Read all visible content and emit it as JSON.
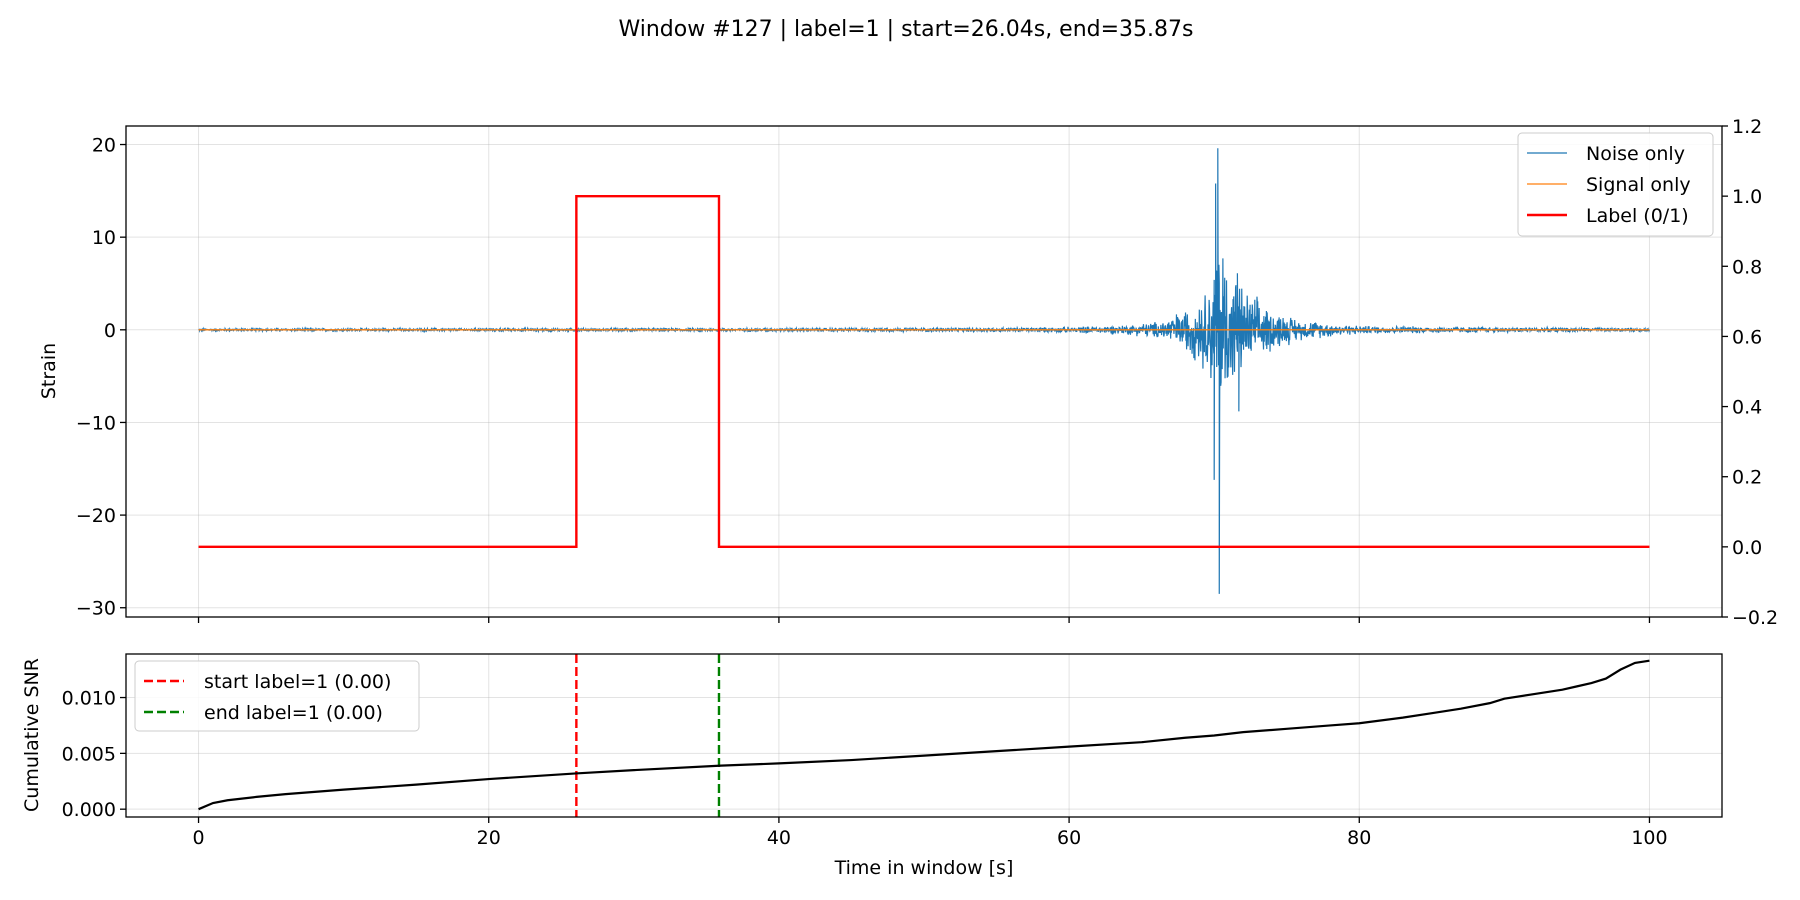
{
  "chart_data": {
    "title": "Window #127 | label=1 | start=26.04s, end=35.87s",
    "panels": [
      {
        "type": "line",
        "ylabel": "Strain",
        "xlim": [
          -5,
          105
        ],
        "ylim": [
          -31,
          22
        ],
        "yticks": [
          20,
          10,
          0,
          -10,
          -20,
          -30
        ],
        "y_tick_labels": [
          "20",
          "10",
          "0",
          "−10",
          "−20",
          "−30"
        ],
        "xticks": [
          0,
          20,
          40,
          60,
          80,
          100
        ],
        "grid": true,
        "legend": {
          "placement": "top-right",
          "entries": [
            {
              "label": "Noise only",
              "color": "#1f77b4",
              "style": "solid-thin"
            },
            {
              "label": "Signal only",
              "color": "#ff7f0e",
              "style": "solid-thin"
            },
            {
              "label": "Label (0/1)",
              "color": "#ff0000",
              "style": "solid-thick"
            }
          ]
        },
        "secondary_y": {
          "ylim": [
            -0.2,
            1.2
          ],
          "yticks": [
            1.2,
            1.0,
            0.8,
            0.6,
            0.4,
            0.2,
            0.0,
            -0.2
          ],
          "y_tick_labels": [
            "1.2",
            "1.0",
            "0.8",
            "0.6",
            "0.4",
            "0.2",
            "0.0",
            "−0.2"
          ]
        },
        "series": [
          {
            "name": "Noise only",
            "color": "#1f77b4",
            "x_range": [
              0,
              100
            ],
            "baseline": 0,
            "burst_envelope": [
              [
                0,
                0.15
              ],
              [
                20,
                0.18
              ],
              [
                40,
                0.2
              ],
              [
                55,
                0.25
              ],
              [
                60,
                0.35
              ],
              [
                64,
                0.6
              ],
              [
                66,
                1.0
              ],
              [
                68,
                2.5
              ],
              [
                69.5,
                5
              ],
              [
                70.1,
                9
              ],
              [
                70.3,
                14
              ],
              [
                71,
                8
              ],
              [
                72,
                5
              ],
              [
                74,
                2.5
              ],
              [
                76,
                1.2
              ],
              [
                80,
                0.5
              ],
              [
                90,
                0.3
              ],
              [
                100,
                0.2
              ]
            ],
            "extremes": [
              {
                "x": 70.25,
                "y": 19.6
              },
              {
                "x": 70.35,
                "y": -28.5
              },
              {
                "x": 70.1,
                "y": 15.8
              },
              {
                "x": 70.0,
                "y": -16.2
              },
              {
                "x": 71.6,
                "y": 6.1
              },
              {
                "x": 71.7,
                "y": -8.8
              }
            ]
          },
          {
            "name": "Signal only",
            "color": "#ff7f0e",
            "x": [
              0,
              100
            ],
            "y": [
              0,
              0
            ]
          },
          {
            "name": "Label (0/1)",
            "color": "#ff0000",
            "axis": "secondary",
            "x": [
              0,
              26.04,
              26.04,
              35.87,
              35.87,
              100
            ],
            "y": [
              0,
              0,
              1,
              1,
              0,
              0
            ]
          }
        ]
      },
      {
        "type": "line",
        "ylabel": "Cumulative SNR",
        "xlabel": "Time in window [s]",
        "xlim": [
          -5,
          105
        ],
        "ylim": [
          -0.0007,
          0.0139
        ],
        "yticks": [
          0.0,
          0.005,
          0.01
        ],
        "y_tick_labels": [
          "0.000",
          "0.005",
          "0.010"
        ],
        "xticks": [
          0,
          20,
          40,
          60,
          80,
          100
        ],
        "x_tick_labels": [
          "0",
          "20",
          "40",
          "60",
          "80",
          "100"
        ],
        "grid": true,
        "legend": {
          "placement": "top-left",
          "entries": [
            {
              "label": "start label=1 (0.00)",
              "color": "#ff0000",
              "style": "dashed"
            },
            {
              "label": "end label=1 (0.00)",
              "color": "#008000",
              "style": "dashed"
            }
          ]
        },
        "vlines": [
          {
            "x": 26.04,
            "color": "#ff0000"
          },
          {
            "x": 35.87,
            "color": "#008000"
          }
        ],
        "series": [
          {
            "name": "Cumulative SNR",
            "color": "#000000",
            "x": [
              0,
              1,
              2,
              4,
              6,
              8,
              10,
              15,
              20,
              26,
              30,
              36,
              40,
              45,
              50,
              55,
              60,
              65,
              68,
              70,
              72,
              75,
              78,
              80,
              83,
              85,
              87,
              89,
              90,
              92,
              94,
              95,
              96,
              97,
              98,
              99,
              100
            ],
            "y": [
              0.0,
              0.00055,
              0.0008,
              0.0011,
              0.00135,
              0.00155,
              0.00175,
              0.0022,
              0.0027,
              0.0032,
              0.0035,
              0.0039,
              0.0041,
              0.0044,
              0.0048,
              0.0052,
              0.0056,
              0.006,
              0.0064,
              0.0066,
              0.0069,
              0.0072,
              0.0075,
              0.0077,
              0.0082,
              0.0086,
              0.009,
              0.0095,
              0.0099,
              0.0103,
              0.0107,
              0.011,
              0.0113,
              0.0117,
              0.0125,
              0.0131,
              0.0133
            ]
          }
        ]
      }
    ]
  }
}
